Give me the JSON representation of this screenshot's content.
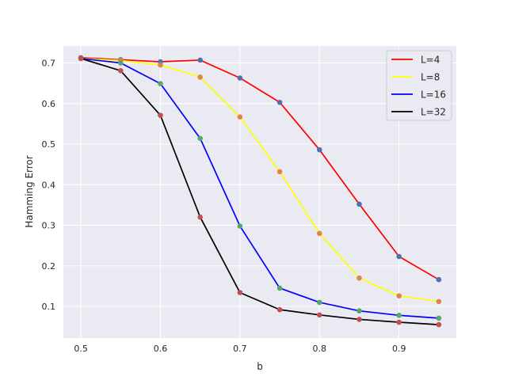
{
  "chart_data": {
    "type": "line",
    "xlabel": "b",
    "ylabel": "Hamming Error",
    "xlim": [
      0.478,
      0.972
    ],
    "ylim": [
      0.022,
      0.742
    ],
    "x_ticks": [
      0.5,
      0.6,
      0.7,
      0.8,
      0.9
    ],
    "x_tick_labels": [
      "0.5",
      "0.6",
      "0.7",
      "0.8",
      "0.9"
    ],
    "y_ticks": [
      0.1,
      0.2,
      0.3,
      0.4,
      0.5,
      0.6,
      0.7
    ],
    "y_tick_labels": [
      "0.1",
      "0.2",
      "0.3",
      "0.4",
      "0.5",
      "0.6",
      "0.7"
    ],
    "grid": true,
    "legend_position": "top-right",
    "x": [
      0.5,
      0.55,
      0.6,
      0.65,
      0.7,
      0.75,
      0.8,
      0.85,
      0.9,
      0.95
    ],
    "series": [
      {
        "name": "L=4",
        "color": "#ff0000",
        "marker_color": "#4c72b0",
        "values": [
          0.713,
          0.708,
          0.703,
          0.707,
          0.663,
          0.603,
          0.486,
          0.352,
          0.223,
          0.166
        ]
      },
      {
        "name": "L=8",
        "color": "#ffff00",
        "marker_color": "#dd8452",
        "values": [
          0.711,
          0.706,
          0.695,
          0.665,
          0.567,
          0.432,
          0.28,
          0.17,
          0.126,
          0.112
        ]
      },
      {
        "name": "L=16",
        "color": "#0000ff",
        "marker_color": "#55a868",
        "values": [
          0.711,
          0.7,
          0.649,
          0.514,
          0.298,
          0.145,
          0.11,
          0.089,
          0.078,
          0.071
        ]
      },
      {
        "name": "L=32",
        "color": "#000000",
        "marker_color": "#c44e52",
        "values": [
          0.711,
          0.681,
          0.571,
          0.32,
          0.134,
          0.092,
          0.079,
          0.068,
          0.061,
          0.055
        ]
      }
    ]
  }
}
